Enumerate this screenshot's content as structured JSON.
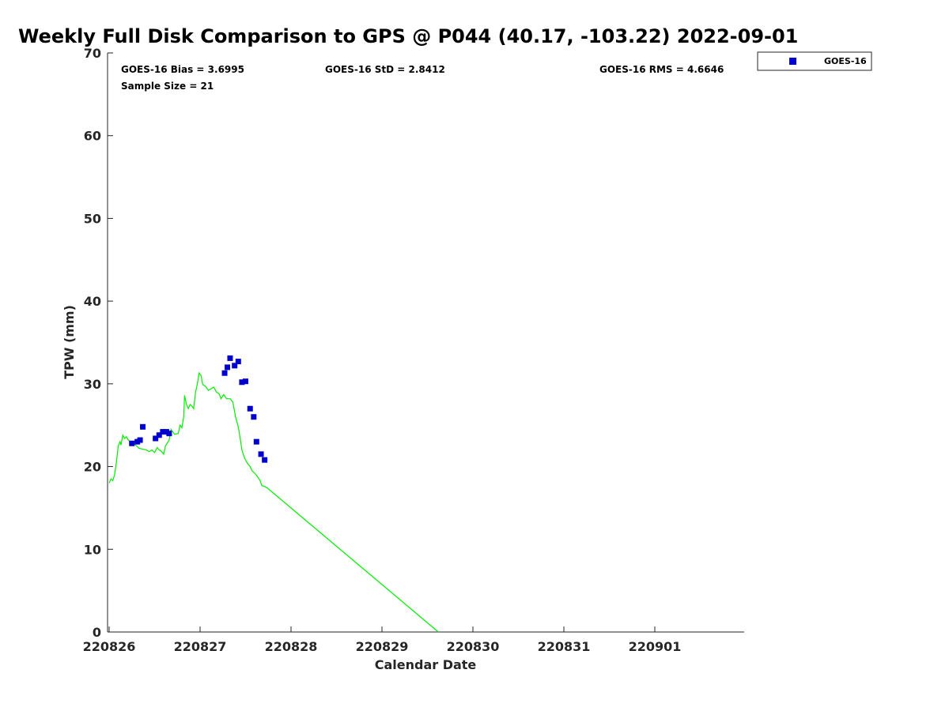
{
  "chart_data": {
    "type": "scatter",
    "title": "Weekly Full Disk Comparison to GPS @ P044 (40.17, -103.22) 2022-09-01",
    "xlabel": "Calendar Date",
    "ylabel": "TPW (mm)",
    "xlim": [
      0,
      7
    ],
    "ylim": [
      0,
      70
    ],
    "yticks": [
      0,
      10,
      20,
      30,
      40,
      50,
      60,
      70
    ],
    "xticks": [
      {
        "value": 0,
        "label": "220826"
      },
      {
        "value": 1,
        "label": "220827"
      },
      {
        "value": 2,
        "label": "220828"
      },
      {
        "value": 3,
        "label": "220829"
      },
      {
        "value": 4,
        "label": "220830"
      },
      {
        "value": 5,
        "label": "220831"
      },
      {
        "value": 6,
        "label": "220901"
      }
    ],
    "stats": {
      "bias": "GOES-16 Bias = 3.6995",
      "std": "GOES-16 StD = 2.8412",
      "rms": "GOES-16 RMS = 4.6646",
      "sample": "Sample Size = 21"
    },
    "legend": {
      "label": "GOES-16",
      "position": "top-right-outside"
    },
    "series": [
      {
        "name": "GOES-16",
        "color": "#0000cc",
        "marker": "square",
        "points": [
          [
            0.25,
            22.8
          ],
          [
            0.31,
            23.0
          ],
          [
            0.34,
            23.2
          ],
          [
            0.37,
            24.8
          ],
          [
            0.51,
            23.4
          ],
          [
            0.55,
            23.8
          ],
          [
            0.59,
            24.2
          ],
          [
            0.63,
            24.2
          ],
          [
            0.66,
            24.0
          ],
          [
            1.27,
            31.3
          ],
          [
            1.3,
            32.0
          ],
          [
            1.33,
            33.1
          ],
          [
            1.38,
            32.2
          ],
          [
            1.42,
            32.7
          ],
          [
            1.46,
            30.2
          ],
          [
            1.5,
            30.3
          ],
          [
            1.55,
            27.0
          ],
          [
            1.59,
            26.0
          ],
          [
            1.62,
            23.0
          ],
          [
            1.67,
            21.5
          ],
          [
            1.71,
            20.8
          ]
        ]
      },
      {
        "name": "GPS",
        "color": "#00ee00",
        "type": "line",
        "points": [
          [
            0.0,
            18.0
          ],
          [
            0.02,
            18.5
          ],
          [
            0.04,
            18.3
          ],
          [
            0.06,
            19.0
          ],
          [
            0.08,
            20.5
          ],
          [
            0.1,
            22.5
          ],
          [
            0.12,
            23.0
          ],
          [
            0.13,
            22.6
          ],
          [
            0.15,
            23.8
          ],
          [
            0.17,
            23.4
          ],
          [
            0.19,
            23.6
          ],
          [
            0.21,
            23.2
          ],
          [
            0.24,
            23.0
          ],
          [
            0.27,
            22.8
          ],
          [
            0.3,
            22.5
          ],
          [
            0.33,
            22.2
          ],
          [
            0.37,
            22.1
          ],
          [
            0.41,
            22.0
          ],
          [
            0.44,
            21.8
          ],
          [
            0.47,
            22.0
          ],
          [
            0.5,
            21.7
          ],
          [
            0.53,
            22.3
          ],
          [
            0.55,
            22.0
          ],
          [
            0.57,
            21.9
          ],
          [
            0.6,
            21.5
          ],
          [
            0.62,
            22.5
          ],
          [
            0.66,
            23.2
          ],
          [
            0.68,
            24.5
          ],
          [
            0.72,
            23.9
          ],
          [
            0.76,
            24.0
          ],
          [
            0.78,
            25.0
          ],
          [
            0.8,
            24.7
          ],
          [
            0.82,
            26.0
          ],
          [
            0.83,
            28.6
          ],
          [
            0.85,
            27.5
          ],
          [
            0.87,
            27.0
          ],
          [
            0.89,
            27.5
          ],
          [
            0.91,
            27.3
          ],
          [
            0.93,
            27.0
          ],
          [
            0.95,
            29.0
          ],
          [
            0.97,
            30.0
          ],
          [
            0.99,
            31.3
          ],
          [
            1.01,
            31.0
          ],
          [
            1.03,
            29.9
          ],
          [
            1.06,
            29.7
          ],
          [
            1.09,
            29.2
          ],
          [
            1.12,
            29.4
          ],
          [
            1.15,
            29.6
          ],
          [
            1.18,
            29.0
          ],
          [
            1.21,
            28.8
          ],
          [
            1.23,
            28.2
          ],
          [
            1.26,
            28.7
          ],
          [
            1.29,
            28.2
          ],
          [
            1.33,
            28.2
          ],
          [
            1.36,
            27.8
          ],
          [
            1.39,
            26.0
          ],
          [
            1.42,
            24.8
          ],
          [
            1.44,
            23.5
          ],
          [
            1.46,
            22.0
          ],
          [
            1.49,
            21.0
          ],
          [
            1.52,
            20.4
          ],
          [
            1.55,
            20.0
          ],
          [
            1.57,
            19.5
          ],
          [
            1.6,
            19.2
          ],
          [
            1.63,
            18.8
          ],
          [
            1.66,
            18.3
          ],
          [
            1.68,
            17.7
          ],
          [
            1.71,
            17.6
          ],
          [
            1.74,
            17.4
          ],
          [
            3.62,
            0.0
          ]
        ]
      }
    ]
  }
}
